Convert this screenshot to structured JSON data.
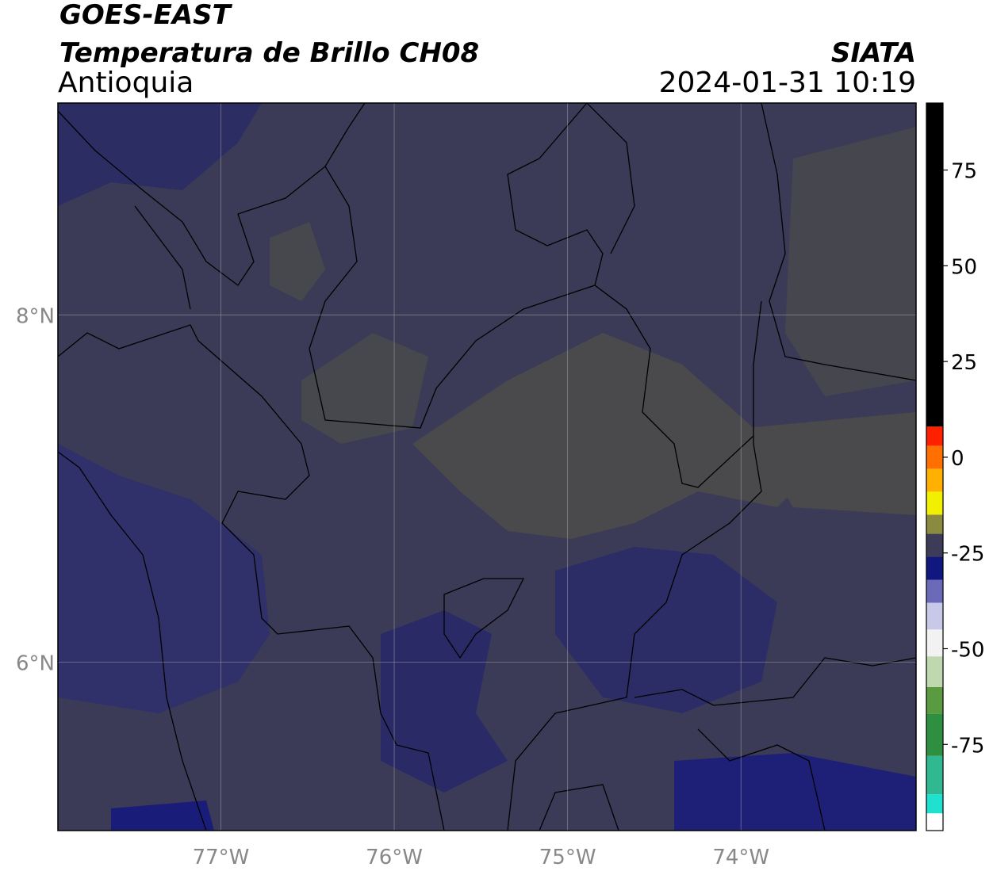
{
  "header": {
    "title": "GOES-EAST",
    "subtitle": "Temperatura de Brillo CH08",
    "region": "Antioquia",
    "source": "SIATA",
    "datetime": "2024-01-31 10:19"
  },
  "map": {
    "xlim": [
      -77.94,
      -72.99
    ],
    "ylim": [
      5.03,
      9.22
    ],
    "xticks": [
      {
        "value": -77,
        "label": "77°W"
      },
      {
        "value": -76,
        "label": "76°W"
      },
      {
        "value": -75,
        "label": "75°W"
      },
      {
        "value": -74,
        "label": "74°W"
      }
    ],
    "yticks": [
      {
        "value": 6,
        "label": "6°N"
      },
      {
        "value": 8,
        "label": "8°N"
      }
    ],
    "grid": true
  },
  "colorbar": {
    "lim": [
      -97.5,
      92.5
    ],
    "ticks": [
      -75,
      -50,
      -25,
      0,
      25,
      50,
      75
    ],
    "bands": [
      {
        "from": -97.5,
        "to": -93,
        "color": "#ffffff"
      },
      {
        "from": -93,
        "to": -88,
        "color": "#20e0d0"
      },
      {
        "from": -88,
        "to": -78,
        "color": "#30b890"
      },
      {
        "from": -78,
        "to": -67,
        "color": "#2f8f40"
      },
      {
        "from": -67,
        "to": -60,
        "color": "#5a9a40"
      },
      {
        "from": -60,
        "to": -52,
        "color": "#c0d8b0"
      },
      {
        "from": -52,
        "to": -45,
        "color": "#f2f2f2"
      },
      {
        "from": -45,
        "to": -38,
        "color": "#c8c8e8"
      },
      {
        "from": -38,
        "to": -32,
        "color": "#6a6ab8"
      },
      {
        "from": -32,
        "to": -26,
        "color": "#101880"
      },
      {
        "from": -26,
        "to": -20,
        "color": "#3c3c58"
      },
      {
        "from": -20,
        "to": -15,
        "color": "#8a8a40"
      },
      {
        "from": -15,
        "to": -9,
        "color": "#f0f000"
      },
      {
        "from": -9,
        "to": -3,
        "color": "#ffb000"
      },
      {
        "from": -3,
        "to": 3,
        "color": "#ff7000"
      },
      {
        "from": 3,
        "to": 8,
        "color": "#ff2000"
      },
      {
        "from": 8,
        "to": 92.5,
        "color": "#000000"
      }
    ]
  }
}
